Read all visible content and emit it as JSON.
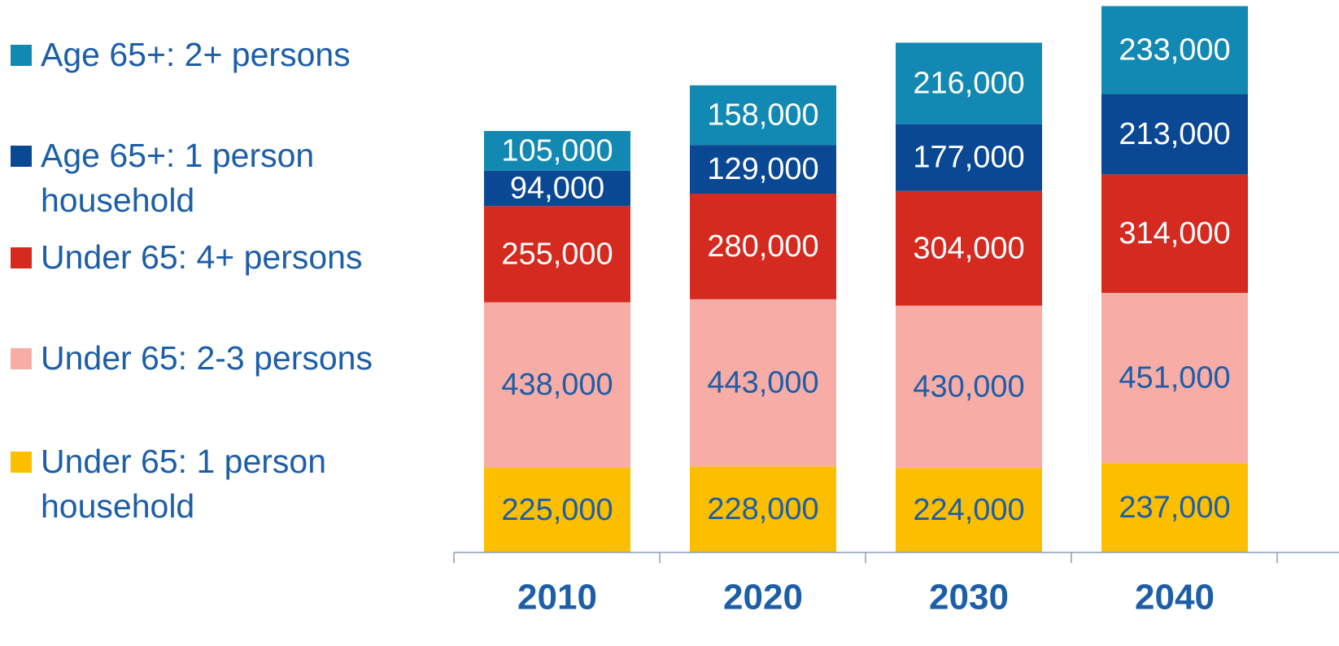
{
  "chart_data": {
    "type": "bar",
    "stacked": true,
    "categories": [
      "2010",
      "2020",
      "2030",
      "2040"
    ],
    "series": [
      {
        "name": "Under 65: 1 person household",
        "color": "#fcbf00",
        "values": [
          225000,
          228000,
          224000,
          237000
        ],
        "value_labels": [
          "225,000",
          "228,000",
          "224,000",
          "237,000"
        ]
      },
      {
        "name": "Under 65: 2-3 persons",
        "color": "#f7aca6",
        "values": [
          438000,
          443000,
          430000,
          451000
        ],
        "value_labels": [
          "438,000",
          "443,000",
          "430,000",
          "451,000"
        ]
      },
      {
        "name": "Under 65: 4+ persons",
        "color": "#d42a20",
        "values": [
          255000,
          280000,
          304000,
          314000
        ],
        "value_labels": [
          "255,000",
          "280,000",
          "304,000",
          "314,000"
        ]
      },
      {
        "name": "Age 65+: 1 person household",
        "color": "#0b4893",
        "values": [
          94000,
          129000,
          177000,
          213000
        ],
        "value_labels": [
          "94,000",
          "129,000",
          "177,000",
          "213,000"
        ]
      },
      {
        "name": "Age 65+: 2+ persons",
        "color": "#1289b3",
        "values": [
          105000,
          158000,
          216000,
          233000
        ],
        "value_labels": [
          "105,000",
          "158,000",
          "216,000",
          "233,000"
        ]
      }
    ]
  }
}
